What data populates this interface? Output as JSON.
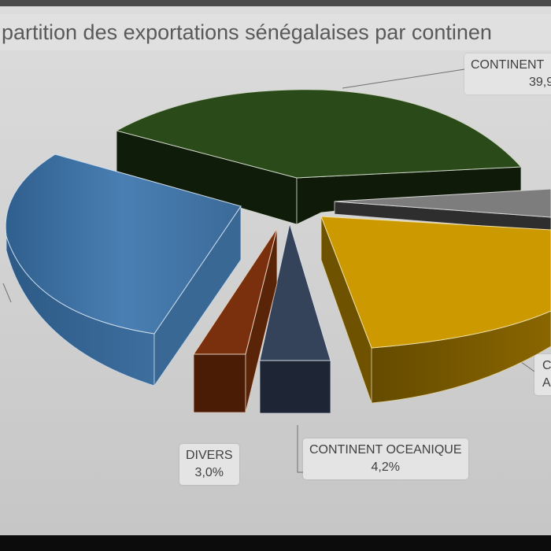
{
  "title": "partition des exportations sénégalaises par continen",
  "chart_data": {
    "type": "pie",
    "three_d": true,
    "exploded": true,
    "slices": [
      {
        "name": "CONTINENT",
        "label": "CONTINENT",
        "value_label": "39,9",
        "value": 39.9,
        "color": "#2b4a1a"
      },
      {
        "name": "",
        "label": "",
        "value_label": "",
        "value": 2.0,
        "color": "#7d7d7d"
      },
      {
        "name": "",
        "label": "C",
        "value_label": "A",
        "value": 22.0,
        "color": "#cc9900"
      },
      {
        "name": "CONTINENT OCEANIQUE",
        "label": "CONTINENT OCEANIQUE",
        "value_label": "4,2%",
        "value": 4.2,
        "color": "#34435a"
      },
      {
        "name": "DIVERS",
        "label": "DIVERS",
        "value_label": "3,0%",
        "value": 3.0,
        "color": "#7a300d"
      },
      {
        "name": "",
        "label": "",
        "value_label": "",
        "value": 28.9,
        "color": "#4a7fb3"
      }
    ]
  }
}
